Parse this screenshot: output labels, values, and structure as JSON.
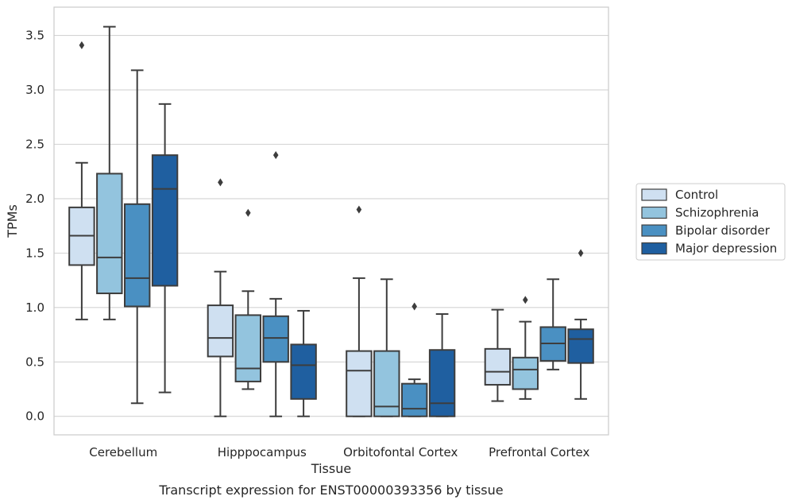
{
  "chart_data": {
    "type": "box",
    "xlabel": "Tissue",
    "ylabel": "TPMs",
    "caption": "Transcript expression for ENST00000393356 by tissue",
    "ylim": [
      -0.17,
      3.76
    ],
    "yticks": [
      0.0,
      0.5,
      1.0,
      1.5,
      2.0,
      2.5,
      3.0,
      3.5
    ],
    "ytick_labels": [
      "0.0",
      "0.5",
      "1.0",
      "1.5",
      "2.0",
      "2.5",
      "3.0",
      "3.5"
    ],
    "categories": [
      "Cerebellum",
      "Hipppocampus",
      "Orbitofontal Cortex",
      "Prefrontal Cortex"
    ],
    "grid": "horizontal",
    "legend_position": "right",
    "series": [
      {
        "name": "Control",
        "color": "#cfe0f1",
        "boxes": [
          {
            "whisker_low": 0.89,
            "q1": 1.39,
            "median": 1.66,
            "q3": 1.92,
            "whisker_high": 2.33,
            "outliers": [
              3.41
            ]
          },
          {
            "whisker_low": 0.0,
            "q1": 0.55,
            "median": 0.72,
            "q3": 1.02,
            "whisker_high": 1.33,
            "outliers": [
              2.15
            ]
          },
          {
            "whisker_low": 0.0,
            "q1": 0.0,
            "median": 0.42,
            "q3": 0.6,
            "whisker_high": 1.27,
            "outliers": [
              1.9
            ]
          },
          {
            "whisker_low": 0.14,
            "q1": 0.29,
            "median": 0.41,
            "q3": 0.62,
            "whisker_high": 0.98,
            "outliers": []
          }
        ]
      },
      {
        "name": "Schizophrenia",
        "color": "#93c4de",
        "boxes": [
          {
            "whisker_low": 0.89,
            "q1": 1.13,
            "median": 1.46,
            "q3": 2.23,
            "whisker_high": 3.58,
            "outliers": []
          },
          {
            "whisker_low": 0.25,
            "q1": 0.32,
            "median": 0.44,
            "q3": 0.93,
            "whisker_high": 1.15,
            "outliers": [
              1.87
            ]
          },
          {
            "whisker_low": 0.0,
            "q1": 0.0,
            "median": 0.09,
            "q3": 0.6,
            "whisker_high": 1.26,
            "outliers": []
          },
          {
            "whisker_low": 0.16,
            "q1": 0.25,
            "median": 0.43,
            "q3": 0.54,
            "whisker_high": 0.87,
            "outliers": [
              1.07
            ]
          }
        ]
      },
      {
        "name": "Bipolar disorder",
        "color": "#4a90c2",
        "boxes": [
          {
            "whisker_low": 0.12,
            "q1": 1.01,
            "median": 1.27,
            "q3": 1.95,
            "whisker_high": 3.18,
            "outliers": []
          },
          {
            "whisker_low": 0.0,
            "q1": 0.5,
            "median": 0.72,
            "q3": 0.92,
            "whisker_high": 1.08,
            "outliers": [
              2.4
            ]
          },
          {
            "whisker_low": 0.0,
            "q1": 0.0,
            "median": 0.07,
            "q3": 0.3,
            "whisker_high": 0.34,
            "outliers": [
              1.01
            ]
          },
          {
            "whisker_low": 0.43,
            "q1": 0.51,
            "median": 0.67,
            "q3": 0.82,
            "whisker_high": 1.26,
            "outliers": []
          }
        ]
      },
      {
        "name": "Major depression",
        "color": "#1f5fa0",
        "boxes": [
          {
            "whisker_low": 0.22,
            "q1": 1.2,
            "median": 2.09,
            "q3": 2.4,
            "whisker_high": 2.87,
            "outliers": []
          },
          {
            "whisker_low": 0.0,
            "q1": 0.16,
            "median": 0.47,
            "q3": 0.66,
            "whisker_high": 0.97,
            "outliers": []
          },
          {
            "whisker_low": 0.0,
            "q1": 0.0,
            "median": 0.12,
            "q3": 0.61,
            "whisker_high": 0.94,
            "outliers": []
          },
          {
            "whisker_low": 0.16,
            "q1": 0.49,
            "median": 0.71,
            "q3": 0.8,
            "whisker_high": 0.89,
            "outliers": [
              1.5
            ]
          }
        ]
      }
    ]
  }
}
